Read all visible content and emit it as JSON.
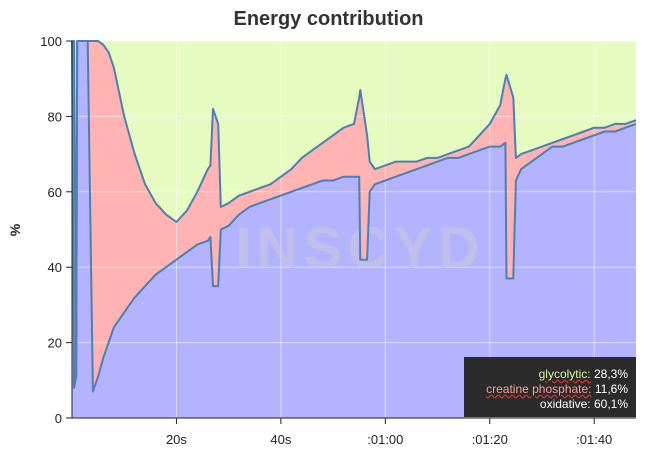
{
  "chart_data": {
    "type": "area",
    "title": "Energy contribution",
    "ylabel": "%",
    "xlabel": "",
    "xlim": [
      0,
      108
    ],
    "ylim": [
      0,
      100
    ],
    "y_ticks": [
      0,
      20,
      40,
      60,
      80,
      100
    ],
    "x_ticks": [
      {
        "value": 20,
        "label": "20s"
      },
      {
        "value": 40,
        "label": "40s"
      },
      {
        "value": 60,
        "label": ":01:00"
      },
      {
        "value": 80,
        "label": ":01:20"
      },
      {
        "value": 100,
        "label": ":01:40"
      }
    ],
    "grid": true,
    "watermark": "INSCYD",
    "colors": {
      "glycolytic": "#e5fbbf",
      "creatine_phosphate": "#ffb3b3",
      "oxidative": "#b3b3ff",
      "line": "#4a80b3"
    },
    "series": [
      {
        "name": "oxidative",
        "points": [
          [
            0,
            100
          ],
          [
            0.4,
            8
          ],
          [
            0.8,
            11
          ],
          [
            1,
            100
          ],
          [
            1.5,
            100
          ],
          [
            2,
            100
          ],
          [
            3,
            100
          ],
          [
            4,
            7
          ],
          [
            5,
            11
          ],
          [
            6,
            16
          ],
          [
            7,
            20
          ],
          [
            8,
            24
          ],
          [
            10,
            28
          ],
          [
            12,
            32
          ],
          [
            14,
            35
          ],
          [
            16,
            38
          ],
          [
            18,
            40
          ],
          [
            20,
            42
          ],
          [
            22,
            44
          ],
          [
            24,
            46
          ],
          [
            26,
            47
          ],
          [
            26.5,
            48
          ],
          [
            27,
            35
          ],
          [
            28,
            35
          ],
          [
            28.5,
            50
          ],
          [
            30,
            51
          ],
          [
            32,
            54
          ],
          [
            34,
            56
          ],
          [
            36,
            57
          ],
          [
            38,
            58
          ],
          [
            40,
            59
          ],
          [
            42,
            60
          ],
          [
            44,
            61
          ],
          [
            46,
            62
          ],
          [
            48,
            63
          ],
          [
            50,
            63
          ],
          [
            52,
            64
          ],
          [
            54,
            64
          ],
          [
            55,
            64
          ],
          [
            55.2,
            42
          ],
          [
            56.5,
            42
          ],
          [
            57,
            60
          ],
          [
            58,
            62
          ],
          [
            60,
            63
          ],
          [
            62,
            64
          ],
          [
            64,
            65
          ],
          [
            66,
            66
          ],
          [
            68,
            67
          ],
          [
            70,
            68
          ],
          [
            72,
            69
          ],
          [
            74,
            69
          ],
          [
            76,
            70
          ],
          [
            78,
            71
          ],
          [
            80,
            72
          ],
          [
            82,
            72
          ],
          [
            83,
            73
          ],
          [
            83.2,
            37
          ],
          [
            84.5,
            37
          ],
          [
            85,
            63
          ],
          [
            86,
            66
          ],
          [
            88,
            68
          ],
          [
            90,
            70
          ],
          [
            92,
            72
          ],
          [
            94,
            72
          ],
          [
            96,
            73
          ],
          [
            98,
            74
          ],
          [
            100,
            75
          ],
          [
            102,
            76
          ],
          [
            104,
            76
          ],
          [
            106,
            77
          ],
          [
            108,
            78
          ]
        ]
      },
      {
        "name": "creatine phosphate",
        "points": [
          [
            0,
            100
          ],
          [
            0.4,
            100
          ],
          [
            0.8,
            11
          ],
          [
            1,
            100
          ],
          [
            1.5,
            100
          ],
          [
            2,
            100
          ],
          [
            3,
            100
          ],
          [
            4,
            100
          ],
          [
            5,
            100
          ],
          [
            6,
            99
          ],
          [
            7,
            97
          ],
          [
            8,
            93
          ],
          [
            10,
            80
          ],
          [
            12,
            70
          ],
          [
            14,
            62
          ],
          [
            16,
            57
          ],
          [
            18,
            54
          ],
          [
            20,
            52
          ],
          [
            22,
            55
          ],
          [
            24,
            60
          ],
          [
            26,
            66
          ],
          [
            26.5,
            67
          ],
          [
            27,
            82
          ],
          [
            28,
            78
          ],
          [
            28.5,
            56
          ],
          [
            30,
            57
          ],
          [
            32,
            59
          ],
          [
            34,
            60
          ],
          [
            36,
            61
          ],
          [
            38,
            62
          ],
          [
            40,
            64
          ],
          [
            42,
            66
          ],
          [
            44,
            69
          ],
          [
            46,
            71
          ],
          [
            48,
            73
          ],
          [
            50,
            75
          ],
          [
            52,
            77
          ],
          [
            54,
            78
          ],
          [
            55,
            85
          ],
          [
            55.2,
            87
          ],
          [
            56.5,
            75
          ],
          [
            57,
            68
          ],
          [
            58,
            66
          ],
          [
            60,
            67
          ],
          [
            62,
            68
          ],
          [
            64,
            68
          ],
          [
            66,
            68
          ],
          [
            68,
            69
          ],
          [
            70,
            69
          ],
          [
            72,
            70
          ],
          [
            74,
            71
          ],
          [
            76,
            72
          ],
          [
            78,
            75
          ],
          [
            80,
            78
          ],
          [
            82,
            83
          ],
          [
            83,
            90
          ],
          [
            83.2,
            91
          ],
          [
            84.5,
            85
          ],
          [
            85,
            69
          ],
          [
            86,
            70
          ],
          [
            88,
            71
          ],
          [
            90,
            72
          ],
          [
            92,
            73
          ],
          [
            94,
            74
          ],
          [
            96,
            75
          ],
          [
            98,
            76
          ],
          [
            100,
            77
          ],
          [
            102,
            77
          ],
          [
            104,
            78
          ],
          [
            106,
            78
          ],
          [
            108,
            79
          ]
        ]
      },
      {
        "name": "glycolytic",
        "points": [
          [
            0,
            100
          ],
          [
            108,
            100
          ]
        ]
      }
    ]
  },
  "tooltip": {
    "glycolytic_label": "glycolytic:",
    "glycolytic_value": "28,3%",
    "creatine_label": "creatine phosphate:",
    "creatine_value": "11,6%",
    "oxidative_label": "oxidative:",
    "oxidative_value": "60,1%"
  }
}
